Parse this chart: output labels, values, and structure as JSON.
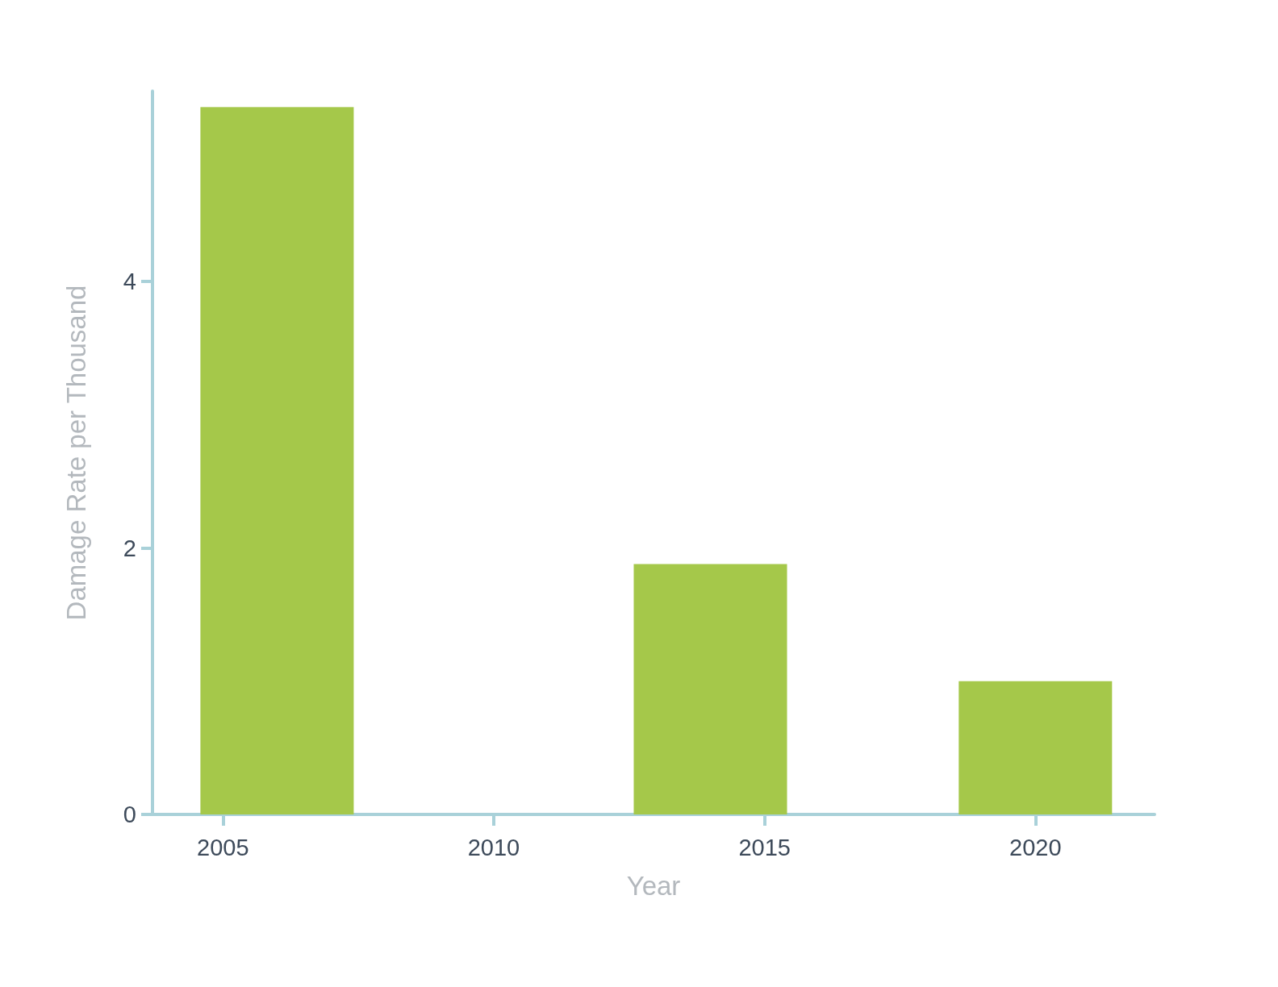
{
  "chart_data": {
    "type": "bar",
    "xlabel": "Year",
    "ylabel": "Damage Rate per Thousand",
    "x": [
      2006,
      2014,
      2020
    ],
    "values": [
      5.31,
      1.88,
      1.0
    ],
    "color": "#a5c84a",
    "xlim": [
      2003.7,
      2022.2
    ],
    "xticks": [
      2005,
      2010,
      2015,
      2020
    ],
    "ylim": [
      0,
      5.43
    ],
    "yticks": [
      0,
      2,
      4
    ],
    "grid": false
  }
}
